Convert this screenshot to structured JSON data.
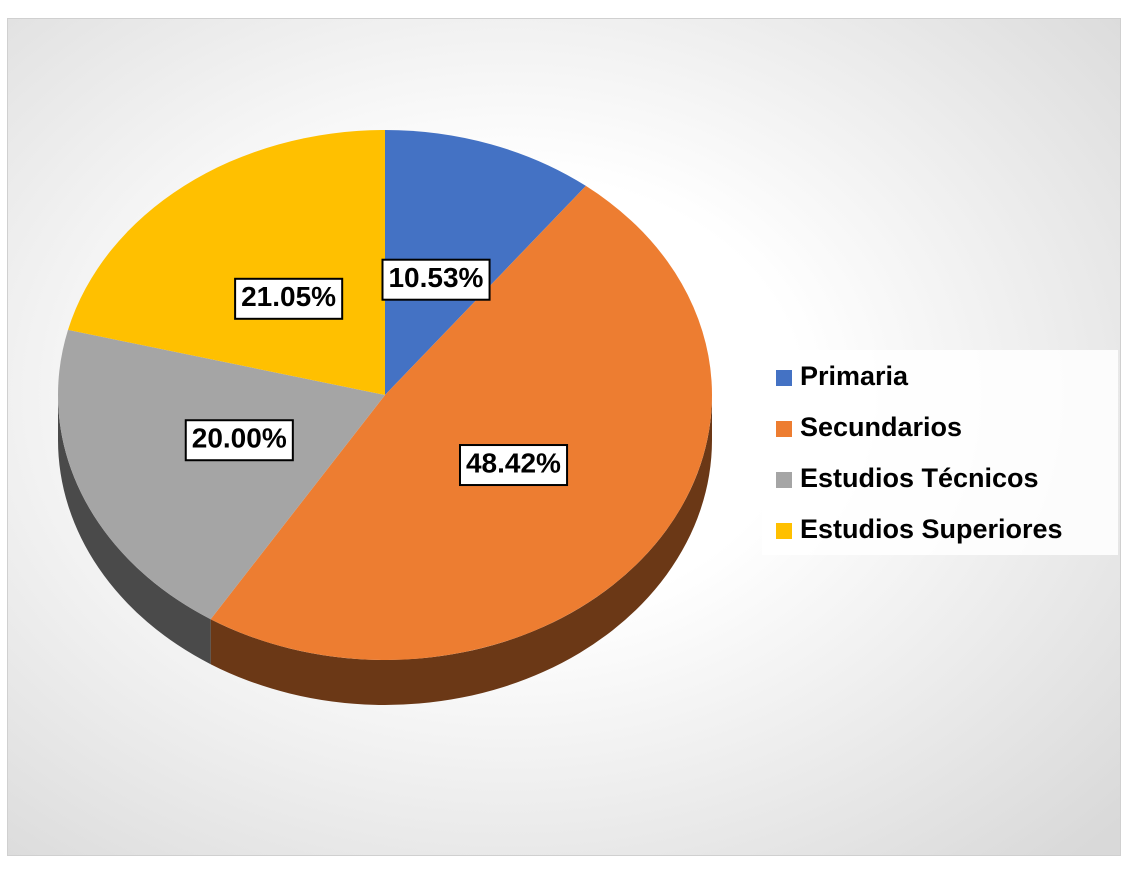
{
  "chart_data": {
    "type": "pie",
    "categories": [
      "Primaria",
      "Secundarios",
      "Estudios Técnicos",
      "Estudios Superiores"
    ],
    "values": [
      10.53,
      48.42,
      20.0,
      21.05
    ],
    "value_labels": [
      "10.53%",
      "48.42%",
      "20.00%",
      "21.05%"
    ],
    "colors": [
      "#4472c4",
      "#ed7d31",
      "#a5a5a5",
      "#ffc000"
    ],
    "legend": "right"
  }
}
